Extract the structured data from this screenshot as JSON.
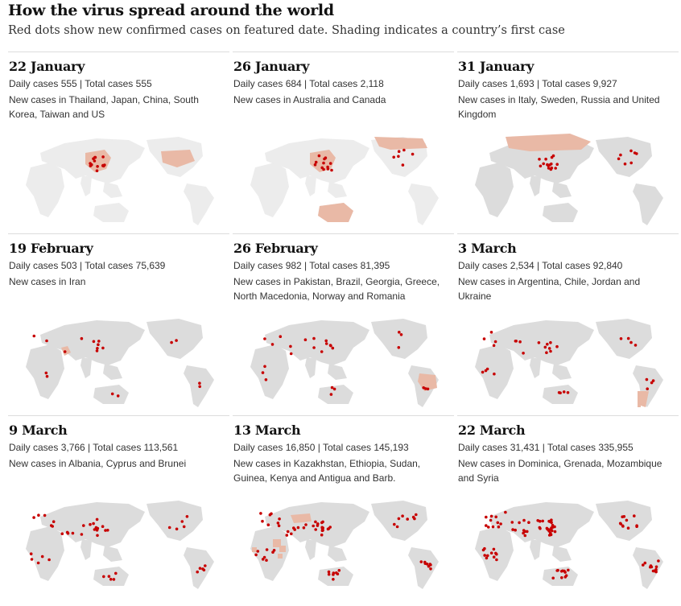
{
  "title": "How the virus spread around the world",
  "subtitle": "Red dots show new confirmed cases on featured date. Shading indicates a country’s first case",
  "colors": {
    "land": "#dcdcdc",
    "land_faint": "#ececec",
    "first_case_shading": "#e9b9a6",
    "case_dot": "#c70000"
  },
  "panels": [
    {
      "date": "22 January",
      "stats": "Daily cases 555 | Total cases 555",
      "new_cases": "New cases in Thailand, Japan, China, South Korea, Taiwan and US",
      "shaded_countries": [
        "China",
        "US"
      ],
      "map_view": "east-asia-pacific"
    },
    {
      "date": "26 January",
      "stats": "Daily cases 684 | Total cases 2,118",
      "new_cases": "New cases in Australia and Canada",
      "shaded_countries": [
        "China",
        "Australia",
        "Canada"
      ],
      "map_view": "east-asia-pacific"
    },
    {
      "date": "31 January",
      "stats": "Daily cases 1,693 | Total cases 9,927",
      "new_cases": "New cases in Italy, Sweden, Russia and United Kingdom",
      "shaded_countries": [
        "Russia"
      ],
      "map_view": "eurasia-pacific"
    },
    {
      "date": "19 February",
      "stats": "Daily cases 503 | Total cases 75,639",
      "new_cases": "New cases in Iran",
      "shaded_countries": [
        "Iran"
      ],
      "map_view": "eurasia-pacific"
    },
    {
      "date": "26 February",
      "stats": "Daily cases 982 | Total cases 81,395",
      "new_cases": "New cases in Pakistan, Brazil, Georgia, Greece, North Macedonia, Norway and Romania",
      "shaded_countries": [
        "Brazil"
      ],
      "map_view": "world-pacific"
    },
    {
      "date": "3 March",
      "stats": "Daily cases 2,534 | Total cases 92,840",
      "new_cases": "New cases in Argentina, Chile, Jordan and Ukraine",
      "shaded_countries": [
        "Argentina",
        "Chile"
      ],
      "map_view": "world-pacific"
    },
    {
      "date": "9 March",
      "stats": "Daily cases 3,766 | Total cases 113,561",
      "new_cases": "New cases in Albania, Cyprus and Brunei",
      "shaded_countries": [],
      "map_view": "world-pacific"
    },
    {
      "date": "13 March",
      "stats": "Daily cases 16,850 | Total cases 145,193",
      "new_cases": "New cases in Kazakhstan, Ethiopia, Sudan, Guinea, Kenya and Antigua and Barb.",
      "shaded_countries": [
        "Kazakhstan",
        "Ethiopia",
        "Sudan",
        "Guinea",
        "Kenya"
      ],
      "map_view": "world-pacific"
    },
    {
      "date": "22 March",
      "stats": "Daily cases 31,431 | Total cases 335,955",
      "new_cases": "New cases in Dominica, Grenada, Mozambique and Syria",
      "shaded_countries": [],
      "map_view": "world-pacific"
    }
  ]
}
